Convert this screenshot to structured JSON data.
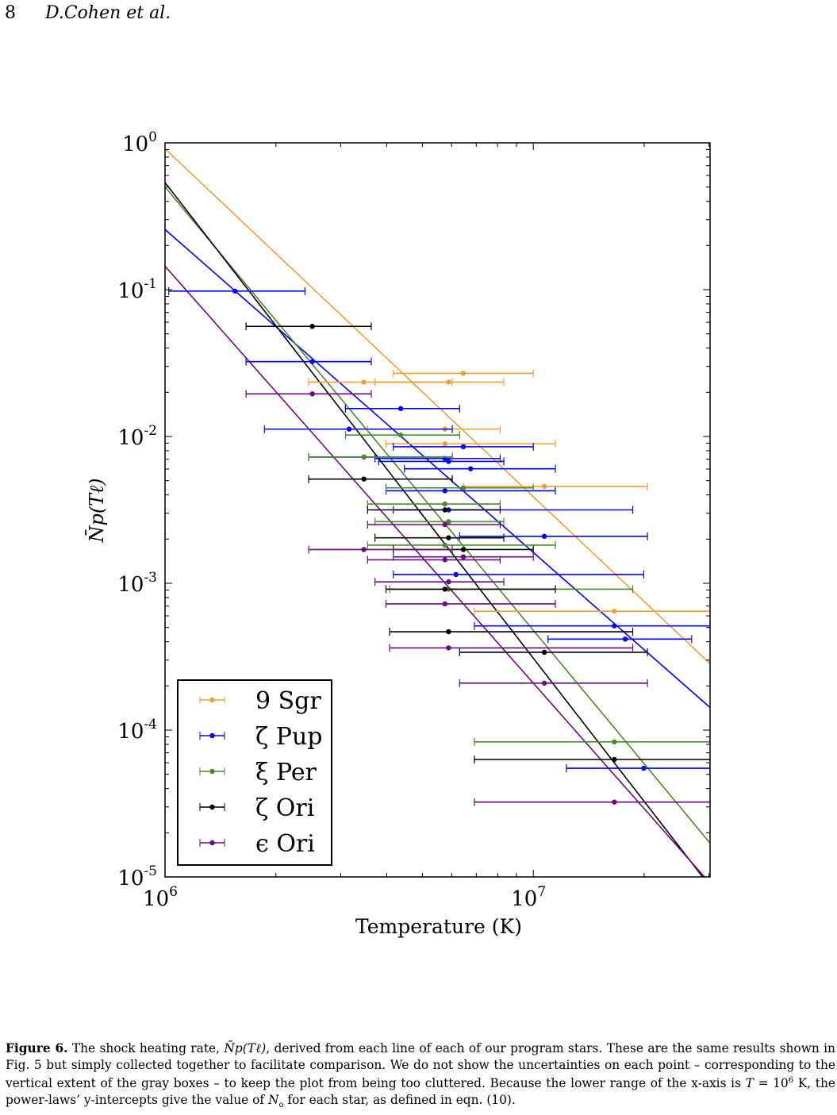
{
  "header": {
    "page_number": "8",
    "running_title": "D.Cohen et al."
  },
  "chart_data": {
    "type": "scatter",
    "xscale": "log",
    "yscale": "log",
    "xlabel": "Temperature (K)",
    "ylabel": "N̄p(Tℓ)",
    "xlim_log10": [
      6,
      7.48
    ],
    "ylim_log10": [
      -5,
      0
    ],
    "x_ticks": [
      {
        "base": "10",
        "exp": "6",
        "log10": 6
      },
      {
        "base": "10",
        "exp": "7",
        "log10": 7
      }
    ],
    "y_ticks": [
      {
        "base": "10",
        "exp": "0",
        "log10": 0
      },
      {
        "base": "10",
        "exp": "-1",
        "log10": -1
      },
      {
        "base": "10",
        "exp": "-2",
        "log10": -2
      },
      {
        "base": "10",
        "exp": "-3",
        "log10": -3
      },
      {
        "base": "10",
        "exp": "-4",
        "log10": -4
      },
      {
        "base": "10",
        "exp": "-5",
        "log10": -5
      }
    ],
    "legend_position": "lower-left",
    "point_format": "[log10 T, log10 Np, log10 T_low, log10 T_high]",
    "series": [
      {
        "name": "9 Sgr",
        "color": "#f0a030",
        "fit_log10_intercept": -0.04,
        "fit_slope": -2.37,
        "points": [
          [
            6.81,
            -1.57,
            6.62,
            7.0
          ],
          [
            6.54,
            -1.63,
            6.39,
            6.78
          ],
          [
            6.77,
            -1.63,
            6.57,
            6.92
          ],
          [
            6.76,
            -1.95,
            6.55,
            6.91
          ],
          [
            6.76,
            -2.05,
            6.6,
            7.06
          ],
          [
            7.03,
            -2.34,
            6.81,
            7.31
          ],
          [
            7.22,
            -3.19,
            6.84,
            7.48
          ]
        ]
      },
      {
        "name": "ζ Pup",
        "color": "#0000ff",
        "fit_log10_intercept": -0.59,
        "fit_slope": -2.2,
        "points": [
          [
            6.19,
            -1.01,
            6.01,
            6.38
          ],
          [
            6.4,
            -1.49,
            6.22,
            6.56
          ],
          [
            6.64,
            -1.81,
            6.49,
            6.8
          ],
          [
            6.5,
            -1.95,
            6.27,
            6.78
          ],
          [
            6.81,
            -2.07,
            6.62,
            7.0
          ],
          [
            6.54,
            -2.14,
            6.39,
            6.78
          ],
          [
            6.76,
            -2.15,
            6.57,
            6.91
          ],
          [
            6.77,
            -2.17,
            6.58,
            6.92
          ],
          [
            6.83,
            -2.22,
            6.65,
            7.06
          ],
          [
            6.76,
            -2.37,
            6.6,
            7.06
          ],
          [
            6.77,
            -2.5,
            6.62,
            7.27
          ],
          [
            7.03,
            -2.68,
            6.8,
            7.31
          ],
          [
            6.79,
            -2.94,
            6.62,
            7.3
          ],
          [
            7.22,
            -3.29,
            6.84,
            7.48
          ],
          [
            7.25,
            -3.38,
            7.04,
            7.43
          ],
          [
            7.3,
            -4.26,
            7.09,
            7.48
          ]
        ]
      },
      {
        "name": "ξ Per",
        "color": "#4a8a2a",
        "fit_log10_intercept": -0.3,
        "fit_slope": -3.02,
        "points": [
          [
            6.64,
            -1.99,
            6.49,
            6.8
          ],
          [
            6.54,
            -2.14,
            6.39,
            6.78
          ],
          [
            6.81,
            -2.35,
            6.6,
            7.0
          ],
          [
            6.76,
            -2.46,
            6.55,
            6.91
          ],
          [
            6.77,
            -2.58,
            6.57,
            6.92
          ],
          [
            6.76,
            -2.74,
            6.55,
            7.06
          ],
          [
            6.77,
            -3.04,
            6.61,
            7.27
          ],
          [
            7.22,
            -4.08,
            6.84,
            7.48
          ]
        ]
      },
      {
        "name": "ζ Ori",
        "color": "#000000",
        "fit_log10_intercept": -0.27,
        "fit_slope": -3.24,
        "points": [
          [
            6.4,
            -1.25,
            6.22,
            6.56
          ],
          [
            6.54,
            -2.29,
            6.39,
            6.78
          ],
          [
            6.76,
            -2.5,
            6.55,
            6.91
          ],
          [
            6.77,
            -2.69,
            6.57,
            6.92
          ],
          [
            6.81,
            -2.77,
            6.62,
            7.0
          ],
          [
            6.76,
            -3.04,
            6.6,
            7.06
          ],
          [
            6.77,
            -3.33,
            6.61,
            7.27
          ],
          [
            7.03,
            -3.47,
            6.8,
            7.31
          ],
          [
            7.22,
            -4.2,
            6.84,
            7.48
          ]
        ]
      },
      {
        "name": "ϵ Ori",
        "color": "#6a0a80",
        "fit_log10_intercept": -0.84,
        "fit_slope": -2.84,
        "points": [
          [
            6.4,
            -1.71,
            6.22,
            6.56
          ],
          [
            6.76,
            -2.6,
            6.55,
            6.91
          ],
          [
            6.54,
            -2.77,
            6.39,
            6.78
          ],
          [
            6.81,
            -2.82,
            6.62,
            7.0
          ],
          [
            6.76,
            -2.84,
            6.55,
            6.91
          ],
          [
            6.77,
            -2.99,
            6.57,
            6.92
          ],
          [
            6.76,
            -3.14,
            6.6,
            7.06
          ],
          [
            6.77,
            -3.44,
            6.61,
            7.27
          ],
          [
            7.03,
            -3.68,
            6.8,
            7.31
          ],
          [
            7.22,
            -4.49,
            6.84,
            7.48
          ]
        ]
      }
    ]
  },
  "caption": {
    "label": "Figure 6.",
    "text1": " The shock heating rate, ",
    "math1": "N̄p(Tℓ)",
    "text2": ", derived from each line of each of our program stars. These are the same results shown in Fig. 5 but simply collected together to facilitate comparison. We do not show the uncertainties on each point – corresponding to the vertical extent of the gray boxes – to keep the plot from being too cluttered. Because the lower range of the x-axis is ",
    "math2": "T",
    "text3": " = 10",
    "sup": "6",
    "text4": " K, the power-laws’ y-intercepts give the value of ",
    "math3": "N",
    "sub": "o",
    "text5": " for each star, as defined in eqn. (10)."
  }
}
